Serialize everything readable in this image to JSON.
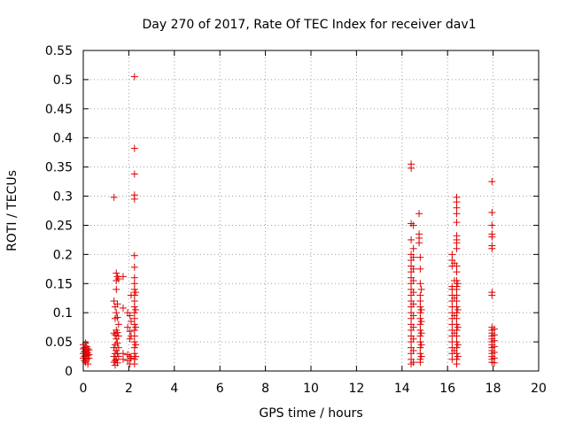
{
  "chart_data": {
    "type": "scatter",
    "title": "Day 270 of 2017, Rate Of TEC Index for receiver dav1",
    "xlabel": "GPS time / hours",
    "ylabel": "ROTI / TECUs",
    "xlim": [
      0,
      20
    ],
    "ylim": [
      0,
      0.55
    ],
    "xticks": [
      "0",
      "2",
      "4",
      "6",
      "8",
      "10",
      "12",
      "14",
      "16",
      "18",
      "20"
    ],
    "yticks": [
      "0",
      "0.05",
      "0.1",
      "0.15",
      "0.2",
      "0.25",
      "0.3",
      "0.35",
      "0.4",
      "0.45",
      "0.5",
      "0.55"
    ],
    "grid": true,
    "marker": "+",
    "color": "#e00000",
    "series": [
      {
        "name": "dav1",
        "points": [
          [
            0.0,
            0.045
          ],
          [
            0.0,
            0.038
          ],
          [
            0.0,
            0.03
          ],
          [
            0.0,
            0.022
          ],
          [
            0.05,
            0.04
          ],
          [
            0.05,
            0.033
          ],
          [
            0.05,
            0.025
          ],
          [
            0.05,
            0.018
          ],
          [
            0.1,
            0.048
          ],
          [
            0.1,
            0.035
          ],
          [
            0.1,
            0.027
          ],
          [
            0.1,
            0.015
          ],
          [
            0.15,
            0.042
          ],
          [
            0.15,
            0.03
          ],
          [
            0.15,
            0.02
          ],
          [
            0.2,
            0.038
          ],
          [
            0.2,
            0.032
          ],
          [
            0.2,
            0.026
          ],
          [
            0.2,
            0.012
          ],
          [
            0.25,
            0.036
          ],
          [
            0.25,
            0.028
          ],
          [
            0.25,
            0.022
          ],
          [
            1.35,
            0.298
          ],
          [
            1.35,
            0.12
          ],
          [
            1.35,
            0.065
          ],
          [
            1.35,
            0.04
          ],
          [
            1.35,
            0.025
          ],
          [
            1.35,
            0.015
          ],
          [
            1.4,
            0.11
          ],
          [
            1.4,
            0.09
          ],
          [
            1.4,
            0.062
          ],
          [
            1.4,
            0.045
          ],
          [
            1.4,
            0.03
          ],
          [
            1.4,
            0.018
          ],
          [
            1.4,
            0.01
          ],
          [
            1.45,
            0.168
          ],
          [
            1.45,
            0.155
          ],
          [
            1.45,
            0.14
          ],
          [
            1.45,
            0.1
          ],
          [
            1.45,
            0.07
          ],
          [
            1.45,
            0.055
          ],
          [
            1.45,
            0.035
          ],
          [
            1.45,
            0.02
          ],
          [
            1.5,
            0.162
          ],
          [
            1.5,
            0.115
          ],
          [
            1.5,
            0.092
          ],
          [
            1.5,
            0.066
          ],
          [
            1.5,
            0.048
          ],
          [
            1.5,
            0.03
          ],
          [
            1.5,
            0.014
          ],
          [
            1.55,
            0.158
          ],
          [
            1.55,
            0.08
          ],
          [
            1.55,
            0.06
          ],
          [
            1.55,
            0.04
          ],
          [
            1.55,
            0.025
          ],
          [
            1.75,
            0.162
          ],
          [
            1.75,
            0.108
          ],
          [
            1.75,
            0.03
          ],
          [
            1.75,
            0.02
          ],
          [
            1.95,
            0.1
          ],
          [
            1.95,
            0.075
          ],
          [
            1.95,
            0.028
          ],
          [
            1.95,
            0.018
          ],
          [
            2.05,
            0.095
          ],
          [
            2.05,
            0.068
          ],
          [
            2.05,
            0.055
          ],
          [
            2.05,
            0.025
          ],
          [
            2.05,
            0.012
          ],
          [
            2.1,
            0.13
          ],
          [
            2.1,
            0.085
          ],
          [
            2.1,
            0.06
          ],
          [
            2.1,
            0.022
          ],
          [
            2.25,
            0.505
          ],
          [
            2.25,
            0.382
          ],
          [
            2.25,
            0.338
          ],
          [
            2.25,
            0.302
          ],
          [
            2.25,
            0.295
          ],
          [
            2.25,
            0.198
          ],
          [
            2.25,
            0.178
          ],
          [
            2.25,
            0.16
          ],
          [
            2.25,
            0.15
          ],
          [
            2.25,
            0.14
          ],
          [
            2.25,
            0.13
          ],
          [
            2.25,
            0.12
          ],
          [
            2.25,
            0.11
          ],
          [
            2.25,
            0.1
          ],
          [
            2.25,
            0.09
          ],
          [
            2.25,
            0.08
          ],
          [
            2.25,
            0.07
          ],
          [
            2.25,
            0.06
          ],
          [
            2.25,
            0.05
          ],
          [
            2.25,
            0.04
          ],
          [
            2.25,
            0.03
          ],
          [
            2.25,
            0.02
          ],
          [
            2.25,
            0.012
          ],
          [
            2.3,
            0.135
          ],
          [
            2.3,
            0.105
          ],
          [
            2.3,
            0.075
          ],
          [
            2.3,
            0.045
          ],
          [
            2.3,
            0.025
          ],
          [
            14.4,
            0.355
          ],
          [
            14.4,
            0.348
          ],
          [
            14.4,
            0.253
          ],
          [
            14.4,
            0.225
          ],
          [
            14.4,
            0.2
          ],
          [
            14.4,
            0.19
          ],
          [
            14.4,
            0.18
          ],
          [
            14.4,
            0.17
          ],
          [
            14.4,
            0.16
          ],
          [
            14.4,
            0.15
          ],
          [
            14.4,
            0.14
          ],
          [
            14.4,
            0.13
          ],
          [
            14.4,
            0.12
          ],
          [
            14.4,
            0.11
          ],
          [
            14.4,
            0.1
          ],
          [
            14.4,
            0.09
          ],
          [
            14.4,
            0.08
          ],
          [
            14.4,
            0.07
          ],
          [
            14.4,
            0.06
          ],
          [
            14.4,
            0.05
          ],
          [
            14.4,
            0.04
          ],
          [
            14.4,
            0.03
          ],
          [
            14.4,
            0.02
          ],
          [
            14.4,
            0.012
          ],
          [
            14.5,
            0.25
          ],
          [
            14.5,
            0.21
          ],
          [
            14.5,
            0.195
          ],
          [
            14.5,
            0.175
          ],
          [
            14.5,
            0.155
          ],
          [
            14.5,
            0.135
          ],
          [
            14.5,
            0.115
          ],
          [
            14.5,
            0.095
          ],
          [
            14.5,
            0.075
          ],
          [
            14.5,
            0.055
          ],
          [
            14.5,
            0.035
          ],
          [
            14.5,
            0.015
          ],
          [
            14.75,
            0.27
          ],
          [
            14.75,
            0.235
          ],
          [
            14.75,
            0.228
          ],
          [
            14.75,
            0.22
          ],
          [
            14.8,
            0.195
          ],
          [
            14.8,
            0.175
          ],
          [
            14.8,
            0.15
          ],
          [
            14.8,
            0.13
          ],
          [
            14.8,
            0.12
          ],
          [
            14.8,
            0.11
          ],
          [
            14.8,
            0.1
          ],
          [
            14.8,
            0.09
          ],
          [
            14.8,
            0.08
          ],
          [
            14.8,
            0.07
          ],
          [
            14.8,
            0.06
          ],
          [
            14.8,
            0.05
          ],
          [
            14.8,
            0.04
          ],
          [
            14.8,
            0.03
          ],
          [
            14.8,
            0.02
          ],
          [
            14.8,
            0.015
          ],
          [
            14.85,
            0.14
          ],
          [
            14.85,
            0.105
          ],
          [
            14.85,
            0.085
          ],
          [
            14.85,
            0.065
          ],
          [
            14.85,
            0.045
          ],
          [
            14.85,
            0.025
          ],
          [
            16.2,
            0.2
          ],
          [
            16.2,
            0.19
          ],
          [
            16.2,
            0.18
          ],
          [
            16.2,
            0.145
          ],
          [
            16.2,
            0.14
          ],
          [
            16.2,
            0.13
          ],
          [
            16.2,
            0.12
          ],
          [
            16.2,
            0.11
          ],
          [
            16.2,
            0.1
          ],
          [
            16.2,
            0.09
          ],
          [
            16.2,
            0.08
          ],
          [
            16.2,
            0.07
          ],
          [
            16.2,
            0.06
          ],
          [
            16.2,
            0.05
          ],
          [
            16.2,
            0.04
          ],
          [
            16.2,
            0.03
          ],
          [
            16.2,
            0.02
          ],
          [
            16.3,
            0.185
          ],
          [
            16.3,
            0.155
          ],
          [
            16.3,
            0.125
          ],
          [
            16.3,
            0.095
          ],
          [
            16.3,
            0.065
          ],
          [
            16.3,
            0.035
          ],
          [
            16.4,
            0.298
          ],
          [
            16.4,
            0.29
          ],
          [
            16.4,
            0.28
          ],
          [
            16.4,
            0.27
          ],
          [
            16.4,
            0.255
          ],
          [
            16.4,
            0.232
          ],
          [
            16.4,
            0.225
          ],
          [
            16.4,
            0.22
          ],
          [
            16.4,
            0.21
          ],
          [
            16.4,
            0.18
          ],
          [
            16.4,
            0.17
          ],
          [
            16.4,
            0.155
          ],
          [
            16.4,
            0.145
          ],
          [
            16.4,
            0.14
          ],
          [
            16.4,
            0.13
          ],
          [
            16.4,
            0.12
          ],
          [
            16.4,
            0.11
          ],
          [
            16.4,
            0.1
          ],
          [
            16.4,
            0.09
          ],
          [
            16.4,
            0.08
          ],
          [
            16.4,
            0.07
          ],
          [
            16.4,
            0.06
          ],
          [
            16.4,
            0.05
          ],
          [
            16.4,
            0.04
          ],
          [
            16.4,
            0.03
          ],
          [
            16.4,
            0.02
          ],
          [
            16.4,
            0.012
          ],
          [
            16.45,
            0.15
          ],
          [
            16.45,
            0.105
          ],
          [
            16.45,
            0.075
          ],
          [
            16.45,
            0.045
          ],
          [
            16.45,
            0.025
          ],
          [
            17.95,
            0.325
          ],
          [
            17.95,
            0.272
          ],
          [
            17.95,
            0.25
          ],
          [
            17.95,
            0.235
          ],
          [
            17.95,
            0.23
          ],
          [
            17.95,
            0.215
          ],
          [
            17.95,
            0.21
          ],
          [
            17.95,
            0.135
          ],
          [
            17.95,
            0.13
          ],
          [
            17.95,
            0.075
          ],
          [
            17.95,
            0.07
          ],
          [
            17.95,
            0.065
          ],
          [
            17.95,
            0.06
          ],
          [
            17.95,
            0.055
          ],
          [
            17.95,
            0.05
          ],
          [
            17.95,
            0.045
          ],
          [
            17.95,
            0.04
          ],
          [
            17.95,
            0.035
          ],
          [
            17.95,
            0.03
          ],
          [
            17.95,
            0.025
          ],
          [
            17.95,
            0.02
          ],
          [
            17.95,
            0.015
          ],
          [
            18.05,
            0.072
          ],
          [
            18.05,
            0.062
          ],
          [
            18.05,
            0.052
          ],
          [
            18.05,
            0.042
          ],
          [
            18.05,
            0.032
          ],
          [
            18.05,
            0.022
          ],
          [
            18.05,
            0.014
          ]
        ]
      }
    ]
  }
}
